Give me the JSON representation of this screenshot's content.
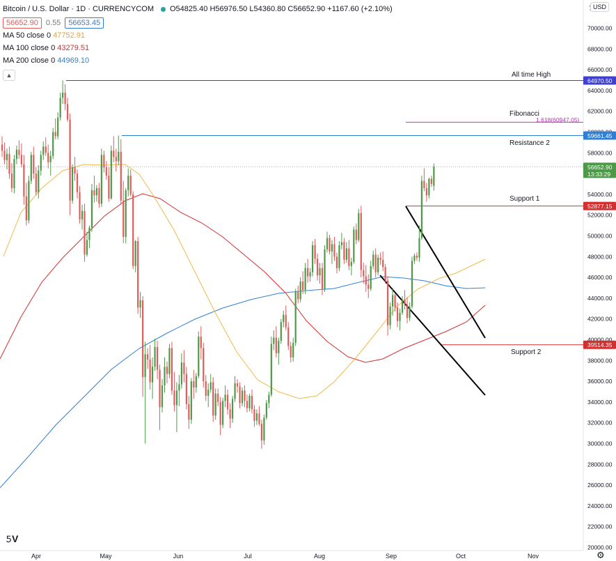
{
  "header": {
    "title": "Bitcoin / U.S. Dollar · 1D · CURRENCYCOM",
    "ohlc": "O54825.40 H56976.50 L54360.80 C56652.90 +1167.60 (+2.10%)",
    "ohlc_change": "+1167.60 (+2.10%)",
    "bid": "56652.90",
    "spread": "0.55",
    "ask": "56653.45",
    "collapse_icon": "chevron-up-icon"
  },
  "indicators": [
    {
      "label": "MA 50 close 0",
      "value": "47752.91",
      "color": "#f0b94a"
    },
    {
      "label": "MA 100 close 0",
      "value": "43279.51",
      "color": "#d32f2f"
    },
    {
      "label": "MA 200 close 0",
      "value": "44969.10",
      "color": "#2f7fd6"
    }
  ],
  "currency_button": "USD",
  "axis_top_label": "7",
  "colors": {
    "up": "#4c9a47",
    "down": "#e25b5b",
    "ath_line": "#3f3fd0",
    "resistance_line": "#2f7fd6",
    "support_line": "#d32f2f",
    "fib_line": "#c030c0",
    "ma50": "#f0b94a",
    "ma100": "#d32f2f",
    "ma200": "#2f7fd6"
  },
  "chart_data": {
    "type": "candlestick",
    "y_ticks": [
      "70000.00",
      "68000.00",
      "66000.00",
      "64000.00",
      "62000.00",
      "60000.00",
      "58000.00",
      "56000.00",
      "54000.00",
      "52000.00",
      "50000.00",
      "48000.00",
      "46000.00",
      "44000.00",
      "42000.00",
      "40000.00",
      "38000.00",
      "36000.00",
      "34000.00",
      "32000.00",
      "30000.00",
      "28000.00",
      "26000.00",
      "24000.00",
      "22000.00",
      "20000.00"
    ],
    "ylim": [
      20000,
      72000
    ],
    "x_labels": [
      "Apr",
      "May",
      "Jun",
      "Jul",
      "Aug",
      "Sep",
      "Oct",
      "Nov"
    ],
    "price_labels": [
      {
        "text": "64970.50",
        "value": 64970.5,
        "color": "#3f3fd0"
      },
      {
        "text": "59661.45",
        "value": 59661.45,
        "color": "#2f7fd6"
      },
      {
        "text": "56652.90",
        "sub": "13:33:29",
        "value": 56652.9,
        "color": "#4c9a47"
      },
      {
        "text": "52877.15",
        "value": 52877.15,
        "color": "#d32f2f"
      },
      {
        "text": "39514.35",
        "value": 39514.35,
        "color": "#d32f2f"
      }
    ],
    "annotations": [
      {
        "text": "All time High",
        "value": 64970.5
      },
      {
        "text": "Fibonacci",
        "value": 60947.05
      },
      {
        "text": "1.618(60947.05)",
        "value": 60947.05
      },
      {
        "text": "Resistance 2",
        "value": 59661.45
      },
      {
        "text": "Support 1",
        "value": 52877.15
      },
      {
        "text": "Support 2",
        "value": 39514.35
      }
    ],
    "ohlc_path": [
      [
        58800,
        59600,
        57600,
        58200
      ],
      [
        58200,
        59000,
        56900,
        57300
      ],
      [
        57300,
        58400,
        56400,
        57900
      ],
      [
        57900,
        58600,
        55500,
        56000
      ],
      [
        56000,
        57000,
        54200,
        54600
      ],
      [
        54600,
        57800,
        54100,
        57400
      ],
      [
        57400,
        58700,
        56900,
        58300
      ],
      [
        58300,
        59200,
        57400,
        57800
      ],
      [
        57800,
        58900,
        56600,
        56900
      ],
      [
        56900,
        57800,
        53000,
        53800
      ],
      [
        53800,
        55100,
        51000,
        51500
      ],
      [
        51500,
        55800,
        51200,
        55300
      ],
      [
        55300,
        58100,
        55000,
        57800
      ],
      [
        57800,
        58600,
        55500,
        56000
      ],
      [
        56000,
        56600,
        53900,
        54200
      ],
      [
        54200,
        56800,
        53600,
        56300
      ],
      [
        56300,
        58200,
        55800,
        57800
      ],
      [
        57800,
        59100,
        57300,
        58600
      ],
      [
        58600,
        59500,
        57700,
        58000
      ],
      [
        58000,
        58800,
        56500,
        57100
      ],
      [
        57100,
        58200,
        55800,
        57700
      ],
      [
        57700,
        60400,
        57400,
        60000
      ],
      [
        60000,
        61300,
        59300,
        59600
      ],
      [
        59600,
        61900,
        59300,
        61400
      ],
      [
        61400,
        63800,
        61100,
        63300
      ],
      [
        63300,
        64970,
        62700,
        63800
      ],
      [
        63800,
        64600,
        62100,
        62700
      ],
      [
        62700,
        63300,
        61000,
        61200
      ],
      [
        61200,
        61800,
        52000,
        53400
      ],
      [
        53400,
        56900,
        53100,
        56600
      ],
      [
        56600,
        57600,
        55300,
        56000
      ],
      [
        56000,
        56400,
        53600,
        54200
      ],
      [
        54200,
        54800,
        51200,
        51600
      ],
      [
        51600,
        53000,
        50600,
        52400
      ],
      [
        52400,
        53100,
        47500,
        48200
      ],
      [
        48200,
        50400,
        48000,
        49600
      ],
      [
        49600,
        51000,
        48800,
        50800
      ],
      [
        50800,
        55000,
        50400,
        54400
      ],
      [
        54400,
        55800,
        53200,
        53900
      ],
      [
        53900,
        54900,
        53300,
        54600
      ],
      [
        54600,
        55100,
        52700,
        53100
      ],
      [
        53100,
        58400,
        52800,
        57800
      ],
      [
        57800,
        58200,
        56100,
        56600
      ],
      [
        56600,
        57200,
        55400,
        55800
      ],
      [
        55800,
        56600,
        53300,
        53600
      ],
      [
        53600,
        58700,
        53500,
        58200
      ],
      [
        58200,
        59600,
        57100,
        57600
      ],
      [
        57600,
        58400,
        56200,
        57200
      ],
      [
        57200,
        59661,
        56800,
        58100
      ],
      [
        58100,
        59300,
        53000,
        53400
      ],
      [
        53400,
        55300,
        49300,
        49900
      ],
      [
        49900,
        54600,
        49300,
        54400
      ],
      [
        54400,
        56500,
        53800,
        55800
      ],
      [
        55800,
        56400,
        53800,
        54000
      ],
      [
        54000,
        54300,
        46800,
        47100
      ],
      [
        47100,
        49600,
        46500,
        49500
      ],
      [
        49500,
        49900,
        42500,
        43100
      ],
      [
        43100,
        44600,
        42100,
        43800
      ],
      [
        43800,
        44200,
        34500,
        36400
      ],
      [
        36400,
        39800,
        30000,
        38600
      ],
      [
        38600,
        39200,
        37200,
        38100
      ],
      [
        38100,
        39500,
        35200,
        35900
      ],
      [
        35900,
        38300,
        34300,
        37400
      ],
      [
        37400,
        40100,
        37000,
        39300
      ],
      [
        39300,
        39900,
        36200,
        37100
      ],
      [
        37100,
        37600,
        31300,
        33500
      ],
      [
        33500,
        36200,
        33000,
        35600
      ],
      [
        35600,
        38300,
        34900,
        37400
      ],
      [
        37400,
        37900,
        35800,
        36700
      ],
      [
        36700,
        39600,
        36300,
        39200
      ],
      [
        39200,
        39800,
        34700,
        35100
      ],
      [
        35100,
        36900,
        33100,
        33700
      ],
      [
        33700,
        35900,
        31100,
        35100
      ],
      [
        35100,
        36600,
        33600,
        35700
      ],
      [
        35700,
        38700,
        35300,
        37800
      ],
      [
        37800,
        39000,
        35900,
        36700
      ],
      [
        36700,
        37400,
        33300,
        33800
      ],
      [
        33800,
        34600,
        31400,
        32300
      ],
      [
        32300,
        36300,
        31900,
        36000
      ],
      [
        36000,
        37100,
        34300,
        35400
      ],
      [
        35400,
        36800,
        34900,
        36500
      ],
      [
        36500,
        40800,
        36300,
        40300
      ],
      [
        40300,
        41300,
        38100,
        39200
      ],
      [
        39200,
        39700,
        35400,
        36000
      ],
      [
        36000,
        36600,
        34100,
        34600
      ],
      [
        34600,
        35800,
        33500,
        35200
      ],
      [
        35200,
        36700,
        34900,
        35900
      ],
      [
        35900,
        36400,
        32100,
        32700
      ],
      [
        32700,
        35300,
        32300,
        34800
      ],
      [
        34800,
        35300,
        33600,
        34000
      ],
      [
        34000,
        34500,
        30800,
        31800
      ],
      [
        31800,
        34400,
        31500,
        34100
      ],
      [
        34100,
        35600,
        33500,
        34700
      ],
      [
        34700,
        35200,
        32800,
        33300
      ],
      [
        33300,
        33900,
        31500,
        32400
      ],
      [
        32400,
        34600,
        32000,
        34300
      ],
      [
        34300,
        36500,
        34000,
        35800
      ],
      [
        35800,
        36200,
        34900,
        35500
      ],
      [
        35500,
        35900,
        33400,
        33900
      ],
      [
        33900,
        35400,
        33600,
        35100
      ],
      [
        35100,
        35600,
        33500,
        34100
      ],
      [
        34100,
        34700,
        33000,
        33400
      ],
      [
        33400,
        34800,
        33100,
        34600
      ],
      [
        34600,
        35200,
        32900,
        33300
      ],
      [
        33300,
        33700,
        31600,
        32200
      ],
      [
        32200,
        33300,
        31800,
        32900
      ],
      [
        32900,
        33600,
        31700,
        31900
      ],
      [
        31900,
        32300,
        29500,
        30300
      ],
      [
        30300,
        32800,
        29900,
        32500
      ],
      [
        32500,
        34200,
        32300,
        33900
      ],
      [
        33900,
        35000,
        33400,
        34700
      ],
      [
        34700,
        40300,
        34500,
        39600
      ],
      [
        39600,
        40900,
        39000,
        40200
      ],
      [
        40200,
        41300,
        38300,
        38700
      ],
      [
        38700,
        40200,
        37600,
        39900
      ],
      [
        39900,
        42000,
        39600,
        41700
      ],
      [
        41700,
        42800,
        41200,
        42400
      ],
      [
        42400,
        43300,
        40900,
        41200
      ],
      [
        41200,
        41700,
        39000,
        39400
      ],
      [
        39400,
        39800,
        37800,
        38300
      ],
      [
        38300,
        40200,
        37900,
        39700
      ],
      [
        39700,
        44900,
        39400,
        44600
      ],
      [
        44600,
        45200,
        43500,
        43900
      ],
      [
        43900,
        46000,
        43600,
        45600
      ],
      [
        45600,
        46600,
        44400,
        44800
      ],
      [
        44800,
        47400,
        44400,
        46900
      ],
      [
        46900,
        47800,
        45500,
        46100
      ],
      [
        46100,
        46900,
        45600,
        46500
      ],
      [
        46500,
        49500,
        46100,
        49100
      ],
      [
        49100,
        49700,
        47300,
        47800
      ],
      [
        47800,
        48300,
        45700,
        46200
      ],
      [
        46200,
        47400,
        45400,
        46900
      ],
      [
        46900,
        47400,
        44300,
        44900
      ],
      [
        44900,
        49100,
        44600,
        48700
      ],
      [
        48700,
        50400,
        48400,
        49800
      ],
      [
        49800,
        50100,
        48200,
        48500
      ],
      [
        48500,
        49600,
        47300,
        49200
      ],
      [
        49200,
        49900,
        47600,
        48000
      ],
      [
        48000,
        48400,
        46400,
        46900
      ],
      [
        46900,
        49500,
        46600,
        49100
      ],
      [
        49100,
        50300,
        48700,
        49400
      ],
      [
        49400,
        49800,
        47300,
        47700
      ],
      [
        47700,
        49400,
        47400,
        48800
      ],
      [
        48800,
        49600,
        46700,
        47100
      ],
      [
        47100,
        47900,
        46200,
        47500
      ],
      [
        47500,
        50900,
        47300,
        50600
      ],
      [
        50600,
        51200,
        49200,
        49600
      ],
      [
        49600,
        52600,
        49400,
        52200
      ],
      [
        52200,
        52900,
        46000,
        46700
      ],
      [
        46700,
        47400,
        45400,
        46100
      ],
      [
        46100,
        47200,
        44600,
        45300
      ],
      [
        45300,
        46300,
        44000,
        44900
      ],
      [
        44900,
        47600,
        44700,
        47100
      ],
      [
        47100,
        48600,
        46800,
        48200
      ],
      [
        48200,
        48800,
        46000,
        46500
      ],
      [
        46500,
        48200,
        46200,
        47900
      ],
      [
        47900,
        48400,
        47200,
        47700
      ],
      [
        47700,
        48500,
        46600,
        47000
      ],
      [
        47000,
        47300,
        45400,
        45700
      ],
      [
        45700,
        46100,
        40400,
        41400
      ],
      [
        41400,
        43600,
        41000,
        43200
      ],
      [
        43200,
        45000,
        42300,
        44300
      ],
      [
        44300,
        44500,
        42700,
        43100
      ],
      [
        43100,
        43600,
        41200,
        41800
      ],
      [
        41800,
        43000,
        40900,
        42600
      ],
      [
        42600,
        44200,
        42400,
        43900
      ],
      [
        43900,
        44800,
        42900,
        43400
      ],
      [
        43400,
        44100,
        41600,
        42100
      ],
      [
        42100,
        43600,
        41800,
        43200
      ],
      [
        43200,
        48000,
        43000,
        47600
      ],
      [
        47600,
        48300,
        47300,
        48100
      ],
      [
        48100,
        48400,
        47600,
        47900
      ],
      [
        47900,
        51000,
        47500,
        49800
      ],
      [
        49800,
        55800,
        49600,
        55300
      ],
      [
        55300,
        56500,
        54300,
        54600
      ],
      [
        54600,
        55100,
        53300,
        53900
      ],
      [
        53900,
        55600,
        53600,
        55500
      ],
      [
        55500,
        55800,
        54700,
        55000
      ],
      [
        54825.4,
        56976.5,
        54360.8,
        56652.9
      ]
    ]
  }
}
